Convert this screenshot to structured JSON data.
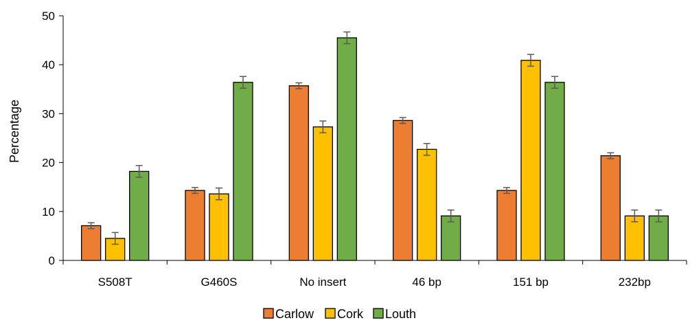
{
  "chart_data": {
    "type": "bar",
    "categories": [
      "S508T",
      "G460S",
      "No insert",
      "46 bp",
      "151 bp",
      "232bp"
    ],
    "series": [
      {
        "name": "Carlow",
        "color": "#ED7D31",
        "values": [
          7.1,
          14.3,
          35.7,
          28.6,
          14.3,
          21.4
        ],
        "errors": [
          0.6,
          0.6,
          0.6,
          0.6,
          0.6,
          0.6
        ]
      },
      {
        "name": "Cork",
        "color": "#FFC000",
        "values": [
          4.5,
          13.6,
          27.3,
          22.7,
          40.9,
          9.1
        ],
        "errors": [
          1.2,
          1.2,
          1.2,
          1.2,
          1.2,
          1.2
        ]
      },
      {
        "name": "Louth",
        "color": "#70AD47",
        "values": [
          18.2,
          36.4,
          45.5,
          9.1,
          36.4,
          9.1
        ],
        "errors": [
          1.2,
          1.2,
          1.2,
          1.2,
          1.2,
          1.2
        ]
      }
    ],
    "ylabel": "Percentage",
    "xlabel": "",
    "ylim": [
      0,
      50
    ],
    "yticks": [
      0,
      10,
      20,
      30,
      40,
      50
    ],
    "legend": "bottom",
    "grid": false
  }
}
